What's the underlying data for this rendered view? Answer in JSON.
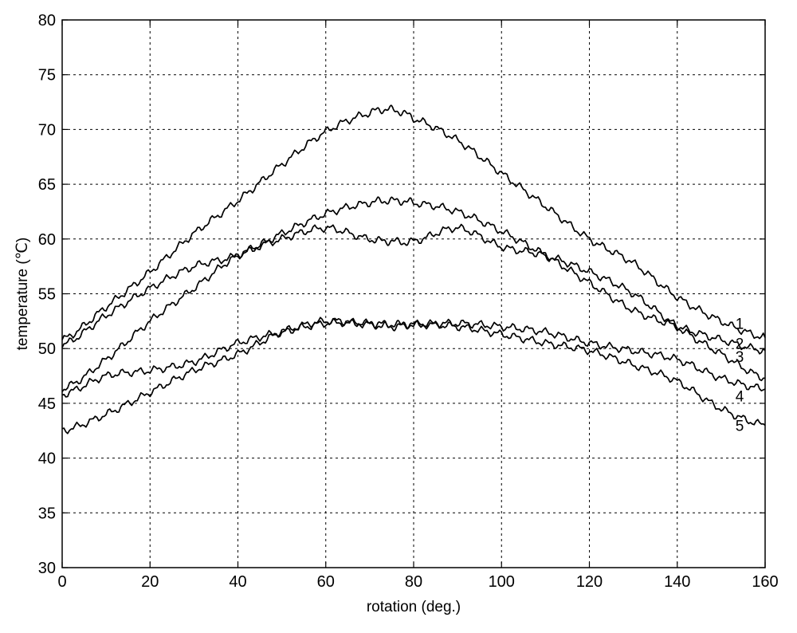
{
  "chart_data": {
    "type": "line",
    "title": "",
    "xlabel": "rotation (deg.)",
    "ylabel": "temperature (℃)",
    "xlim": [
      0,
      160
    ],
    "ylim": [
      30,
      80
    ],
    "xticks": [
      0,
      20,
      40,
      60,
      80,
      100,
      120,
      140,
      160
    ],
    "yticks": [
      30,
      35,
      40,
      45,
      50,
      55,
      60,
      65,
      70,
      75,
      80
    ],
    "grid": true,
    "x": [
      0,
      10,
      20,
      30,
      40,
      50,
      60,
      70,
      75,
      80,
      90,
      100,
      110,
      120,
      130,
      140,
      150,
      160
    ],
    "series": [
      {
        "name": "1",
        "label_y": 52.3,
        "values": [
          50.8,
          53.8,
          57.0,
          60.5,
          63.5,
          66.8,
          69.8,
          71.5,
          71.8,
          71.0,
          69.0,
          66.0,
          63.0,
          60.0,
          57.8,
          54.7,
          52.5,
          51.0
        ]
      },
      {
        "name": "2",
        "label_y": 50.5,
        "values": [
          50.3,
          53.0,
          55.5,
          57.5,
          58.5,
          60.5,
          62.3,
          63.3,
          63.5,
          63.3,
          62.5,
          60.7,
          58.5,
          56.0,
          53.5,
          52.0,
          50.8,
          49.8
        ]
      },
      {
        "name": "3",
        "label_y": 49.3,
        "values": [
          46.3,
          49.0,
          52.5,
          55.5,
          58.5,
          60.0,
          61.0,
          60.0,
          59.8,
          59.8,
          61.0,
          59.3,
          58.5,
          57.0,
          55.0,
          52.0,
          49.5,
          47.3
        ]
      },
      {
        "name": "4",
        "label_y": 45.7,
        "values": [
          45.8,
          47.5,
          48.0,
          48.8,
          50.5,
          51.5,
          52.3,
          52.3,
          52.2,
          52.2,
          52.3,
          52.0,
          51.5,
          50.5,
          49.8,
          49.0,
          47.3,
          46.3
        ]
      },
      {
        "name": "5",
        "label_y": 43.0,
        "values": [
          42.5,
          44.0,
          46.0,
          48.0,
          49.5,
          51.5,
          52.5,
          52.2,
          52.0,
          52.2,
          52.0,
          51.3,
          50.5,
          49.8,
          48.5,
          47.0,
          44.5,
          43.0
        ]
      }
    ]
  }
}
